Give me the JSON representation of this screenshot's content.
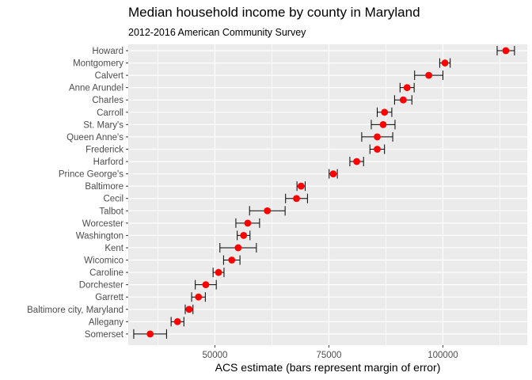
{
  "chart_data": {
    "type": "scatter",
    "title": "Median household income by county in Maryland",
    "subtitle": "2012-2016 American Community Survey",
    "xlabel": "ACS estimate (bars represent margin of error)",
    "ylabel": "",
    "xlim": [
      31000,
      118500
    ],
    "x_ticks": [
      50000,
      75000,
      100000
    ],
    "x_tick_labels": [
      "50000",
      "75000",
      "100000"
    ],
    "grid": true,
    "legend": "none",
    "point_color": "#ff0000",
    "panel_color": "#ebebeb",
    "categories": [
      "Howard",
      "Montgomery",
      "Calvert",
      "Anne Arundel",
      "Charles",
      "Carroll",
      "St. Mary's",
      "Queen Anne's",
      "Frederick",
      "Harford",
      "Prince George's",
      "Baltimore",
      "Cecil",
      "Talbot",
      "Worcester",
      "Washington",
      "Kent",
      "Wicomico",
      "Caroline",
      "Dorchester",
      "Garrett",
      "Baltimore city, Maryland",
      "Allegany",
      "Somerset"
    ],
    "estimate": [
      113800,
      100450,
      96900,
      92150,
      91300,
      87200,
      86900,
      85600,
      85600,
      81100,
      75950,
      68900,
      67900,
      61500,
      57200,
      56300,
      55100,
      53700,
      50800,
      48000,
      46400,
      44350,
      41800,
      35800
    ],
    "margin_lower": [
      111900,
      99300,
      93800,
      90600,
      89400,
      85600,
      84300,
      82200,
      84000,
      79600,
      75050,
      68000,
      65500,
      57600,
      54600,
      54900,
      51100,
      51900,
      49600,
      45700,
      44900,
      43500,
      40400,
      32200
    ],
    "margin_upper": [
      115700,
      101600,
      100000,
      93700,
      93200,
      88800,
      89500,
      89000,
      87200,
      82600,
      76850,
      69800,
      70300,
      65400,
      59800,
      57700,
      59100,
      55500,
      52000,
      50300,
      47900,
      45200,
      43200,
      39400
    ]
  }
}
